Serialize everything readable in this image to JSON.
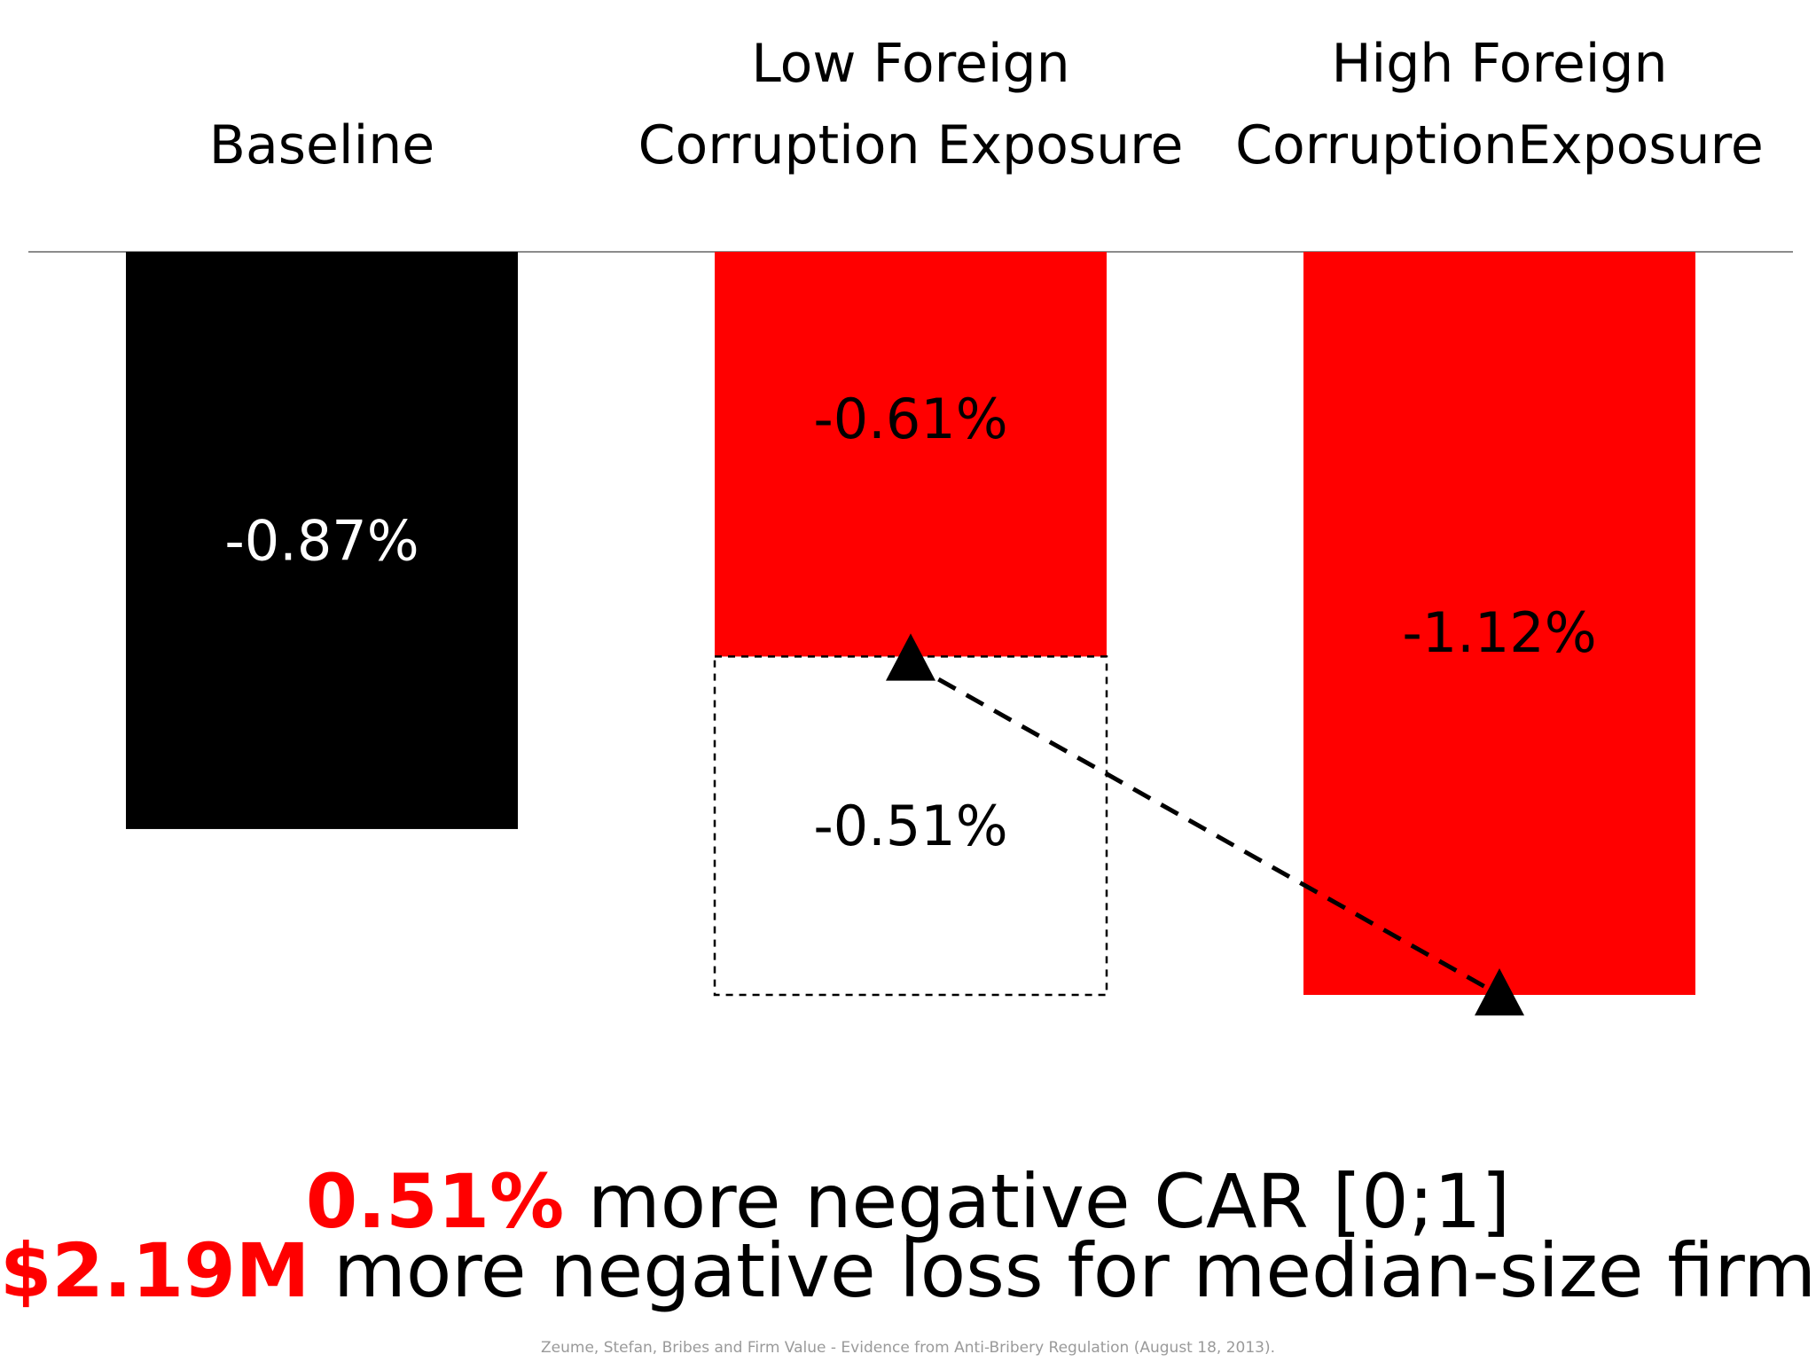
{
  "chart_data": {
    "type": "bar",
    "categories": [
      [
        "Baseline"
      ],
      [
        "Low Foreign",
        "Corruption Exposure"
      ],
      [
        "High Foreign",
        "CorruptionExposure"
      ]
    ],
    "values": [
      -0.87,
      -0.61,
      -1.12
    ],
    "value_labels": [
      "-0.87%",
      "-0.61%",
      "-1.12%"
    ],
    "bar_colors": [
      "#000000",
      "#ff0000",
      "#ff0000"
    ],
    "value_label_colors": [
      "#ffffff",
      "#000000",
      "#000000"
    ],
    "difference": {
      "value": -0.51,
      "label": "-0.51%",
      "from": -0.61,
      "to": -1.12,
      "style": "dashed box",
      "arrow": "dashed line with triangle markers"
    },
    "ylim": [
      -1.12,
      0
    ],
    "grid": false,
    "baseline": "top"
  },
  "caption": {
    "line1_highlight": "0.51%",
    "line1_text": " more negative CAR [0;1]",
    "line2_highlight": "$2.19M",
    "line2_text": " more negative loss for median-size firm",
    "highlight_color": "#ff0000"
  },
  "source": "Zeume, Stefan, Bribes and Firm Value - Evidence from Anti-Bribery Regulation (August 18, 2013)."
}
